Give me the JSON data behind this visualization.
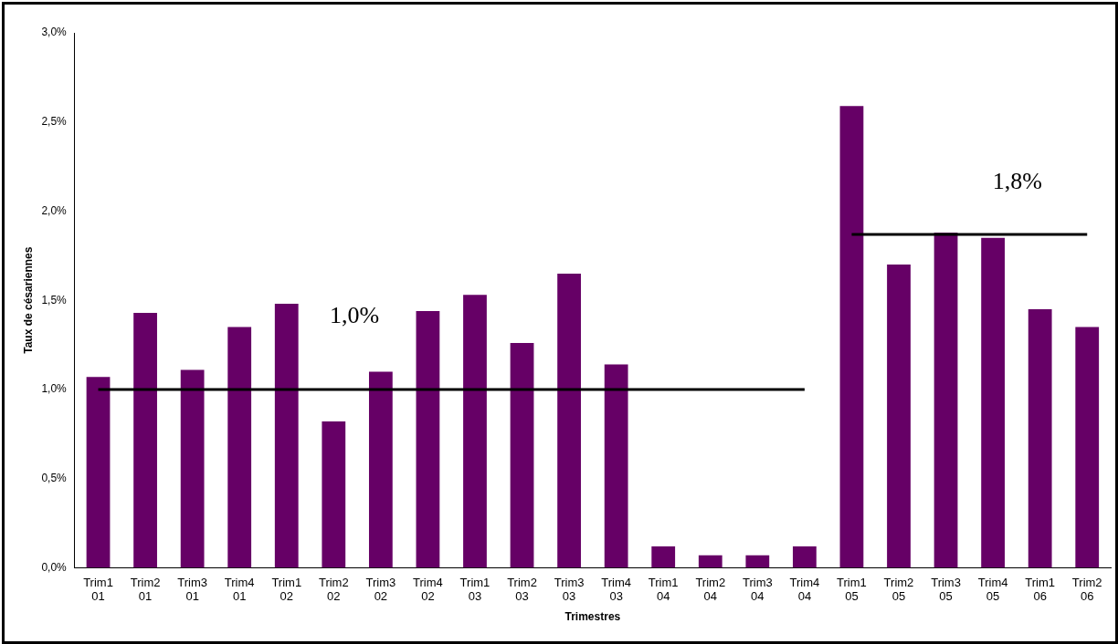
{
  "chart_data": {
    "type": "bar",
    "xlabel": "Trimestres",
    "ylabel": "Taux de césariennes",
    "categories": [
      "Trim1 01",
      "Trim2 01",
      "Trim3 01",
      "Trim4 01",
      "Trim1 02",
      "Trim2 02",
      "Trim3 02",
      "Trim4 02",
      "Trim1 03",
      "Trim2 03",
      "Trim3 03",
      "Trim4 03",
      "Trim1 04",
      "Trim2 04",
      "Trim3 04",
      "Trim4 04",
      "Trim1 05",
      "Trim2 05",
      "Trim3 05",
      "Trim4 05",
      "Trim1 06",
      "Trim2 06"
    ],
    "series": [
      {
        "color": "#660066",
        "values": [
          1.07,
          1.43,
          1.11,
          1.35,
          1.48,
          0.82,
          1.1,
          1.44,
          1.53,
          1.26,
          1.65,
          1.14,
          0.12,
          0.07,
          0.07,
          0.12,
          2.59,
          1.7,
          1.88,
          1.85,
          1.45,
          1.35
        ]
      },
      {
        "type": "line",
        "color": "#000000",
        "values": [
          1.0,
          1.0,
          1.0,
          1.0,
          1.0,
          1.0,
          1.0,
          1.0,
          1.0,
          1.0,
          1.0,
          1.0,
          1.0,
          1.0,
          1.0,
          1.0,
          null,
          null,
          null,
          null,
          null,
          null
        ]
      },
      {
        "type": "line",
        "color": "#000000",
        "values": [
          null,
          null,
          null,
          null,
          null,
          null,
          null,
          null,
          null,
          null,
          null,
          null,
          null,
          null,
          null,
          null,
          1.87,
          1.87,
          1.87,
          1.87,
          1.87,
          1.87
        ]
      }
    ],
    "ylim": [
      0,
      3
    ],
    "yticks": [
      {
        "value": 0,
        "label": "0,0%"
      },
      {
        "value": 0.5,
        "label": "0,5%"
      },
      {
        "value": 1,
        "label": "1,0%"
      },
      {
        "value": 1.5,
        "label": "1,5%"
      },
      {
        "value": 2,
        "label": "2,0%"
      },
      {
        "value": 2.5,
        "label": "2,5%"
      },
      {
        "value": 3,
        "label": "3,0%"
      }
    ],
    "annotations": [
      "1,0%",
      "1,8%"
    ],
    "grid": false,
    "legend": false,
    "marker": "none",
    "line_style": "solid"
  }
}
